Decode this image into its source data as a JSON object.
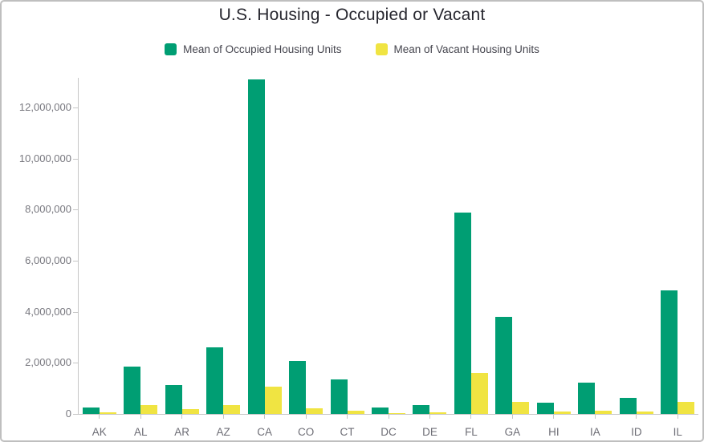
{
  "widget": {
    "title": "U.S. Housing - Occupied or Vacant"
  },
  "legend": {
    "items": [
      {
        "name": "occupied",
        "label": "Mean of Occupied Housing Units",
        "color": "#009E73"
      },
      {
        "name": "vacant",
        "label": "Mean of Vacant Housing Units",
        "color": "#F0E442"
      }
    ]
  },
  "chart_data": {
    "type": "bar",
    "title": "U.S. Housing - Occupied or Vacant",
    "categories": [
      "AK",
      "AL",
      "AR",
      "AZ",
      "CA",
      "CO",
      "CT",
      "DC",
      "DE",
      "FL",
      "GA",
      "HI",
      "IA",
      "ID",
      "IL"
    ],
    "series": [
      {
        "name": "Mean of Occupied Housing Units",
        "color": "#009E73",
        "values": [
          250000,
          1850000,
          1130000,
          2600000,
          13100000,
          2080000,
          1350000,
          260000,
          330000,
          7900000,
          3800000,
          430000,
          1230000,
          620000,
          4850000
        ]
      },
      {
        "name": "Mean of Vacant Housing Units",
        "color": "#F0E442",
        "values": [
          50000,
          340000,
          190000,
          360000,
          1070000,
          210000,
          110000,
          30000,
          60000,
          1600000,
          460000,
          80000,
          120000,
          80000,
          470000
        ]
      }
    ],
    "xlabel": "",
    "ylabel": "",
    "ylim": [
      0,
      13200000
    ],
    "y_ticks": [
      {
        "value": 0,
        "label": "0"
      },
      {
        "value": 2000000,
        "label": "2,000,000"
      },
      {
        "value": 4000000,
        "label": "4,000,000"
      },
      {
        "value": 6000000,
        "label": "6,000,000"
      },
      {
        "value": 8000000,
        "label": "8,000,000"
      },
      {
        "value": 10000000,
        "label": "10,000,000"
      },
      {
        "value": 12000000,
        "label": "12,000,000"
      }
    ],
    "grid": false,
    "legend_position": "top"
  }
}
